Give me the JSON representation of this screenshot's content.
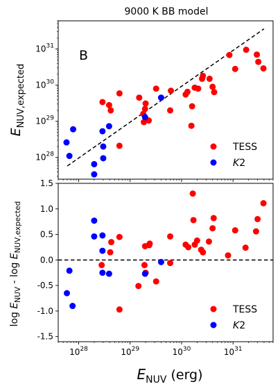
{
  "chart_data": [
    {
      "type": "scatter",
      "title": "9000 K BB model",
      "xlabel": "",
      "ylabel": "E_NUV,expected",
      "xscale": "log",
      "yscale": "log",
      "xlim": [
        4e+27,
        6e+31
      ],
      "ylim": [
        2.5e+27,
        6e+31
      ],
      "grid": false,
      "legend_position": "bottom-right",
      "panel_label": "B",
      "x_ticks": [
        "10^28",
        "10^29",
        "10^30",
        "10^31"
      ],
      "y_ticks": [
        "10^28",
        "10^29",
        "10^30",
        "10^31"
      ],
      "reference_line": {
        "style": "dashed",
        "color": "#000000",
        "x": [
          6e+27,
          4e+31
        ],
        "y": [
          5.8e+27,
          3.6e+31
        ]
      },
      "series": [
        {
          "name": "TESS",
          "color": "#ff0000",
          "points": [
            [
              6.2e+28,
              5.9e+29
            ],
            [
              2.9e+28,
              3.4e+29
            ],
            [
              3.9e+28,
              2.8e+29
            ],
            [
              4.2e+28,
              2e+29
            ],
            [
              6.2e+28,
              2.1e+28
            ],
            [
              1.5e+29,
              4.5e+29
            ],
            [
              1.8e+29,
              1.6e+29
            ],
            [
              1.95e+29,
              2.2e+29
            ],
            [
              2e+29,
              3.1e+29
            ],
            [
              1.85e+29,
              9.5e+28
            ],
            [
              2.3e+29,
              1.05e+29
            ],
            [
              3.2e+29,
              8e+29
            ],
            [
              6.2e+29,
              7e+29
            ],
            [
              6e+29,
              2e+29
            ],
            [
              1.2e+30,
              5.5e+29
            ],
            [
              1.3e+30,
              6.5e+29
            ],
            [
              1.6e+30,
              2.6e+29
            ],
            [
              1.55e+30,
              7.5e+28
            ],
            [
              1.8e+30,
              8.5e+29
            ],
            [
              2.1e+30,
              8e+29
            ],
            [
              2.5e+30,
              1.5e+30
            ],
            [
              2.6e+30,
              1.8e+30
            ],
            [
              3.5e+30,
              1.5e+30
            ],
            [
              4e+30,
              9e+29
            ],
            [
              4.3e+30,
              6.4e+29
            ],
            [
              8.5e+30,
              6.8e+30
            ],
            [
              1.1e+31,
              2.8e+30
            ],
            [
              1.8e+31,
              9.5e+30
            ],
            [
              2.9e+31,
              7e+30
            ],
            [
              3.1e+31,
              4.4e+30
            ],
            [
              3.9e+31,
              2.9e+30
            ]
          ]
        },
        {
          "name": "K2",
          "color": "#0000ff",
          "points": [
            [
              5.8e+27,
              2.6e+28
            ],
            [
              6.6e+27,
              1.1e+28
            ],
            [
              7.8e+27,
              6e+28
            ],
            [
              2e+28,
              6.5e+27
            ],
            [
              2e+28,
              3.4e+27
            ],
            [
              2.9e+28,
              5.3e+28
            ],
            [
              3e+28,
              2e+28
            ],
            [
              3e+28,
              9.5e+27
            ],
            [
              3.9e+28,
              7.3e+28
            ],
            [
              1.95e+29,
              1.3e+29
            ],
            [
              4e+29,
              4.5e+29
            ]
          ]
        }
      ]
    },
    {
      "type": "scatter",
      "title": "",
      "xlabel": "E_NUV (erg)",
      "ylabel": "log E_NUV - log E_NUV,expected",
      "xscale": "log",
      "xlim": [
        4e+27,
        6e+31
      ],
      "ylim": [
        -1.6,
        1.5
      ],
      "grid": false,
      "legend_position": "bottom-right",
      "x_ticks": [
        "10^28",
        "10^29",
        "10^30",
        "10^31"
      ],
      "y_ticks": [
        "-1.5",
        "-1.0",
        "-0.5",
        "0.0",
        "0.5",
        "1.0",
        "1.5"
      ],
      "y_tick_values": [
        -1.5,
        -1.0,
        -0.5,
        0.0,
        0.5,
        1.0,
        1.5
      ],
      "reference_line": {
        "style": "dashed",
        "color": "#000000",
        "y": 0
      },
      "series": [
        {
          "name": "TESS",
          "color": "#ff0000",
          "points": [
            [
              2.8e+28,
              -0.1
            ],
            [
              4.3e+28,
              0.35
            ],
            [
              4.1e+28,
              0.15
            ],
            [
              6.2e+28,
              0.45
            ],
            [
              6.2e+28,
              -0.97
            ],
            [
              1.45e+29,
              -0.51
            ],
            [
              1.9e+29,
              -0.1
            ],
            [
              1.95e+29,
              0.27
            ],
            [
              2e+29,
              -0.25
            ],
            [
              2.35e+29,
              0.29
            ],
            [
              2.4e+29,
              0.32
            ],
            [
              3.2e+29,
              -0.42
            ],
            [
              6e+29,
              0.46
            ],
            [
              6e+29,
              -0.06
            ],
            [
              1.2e+30,
              0.3
            ],
            [
              1.35e+30,
              0.25
            ],
            [
              1.65e+30,
              1.3
            ],
            [
              1.7e+30,
              0.78
            ],
            [
              1.8e+30,
              0.3
            ],
            [
              2e+30,
              0.38
            ],
            [
              2.4e+30,
              0.2
            ],
            [
              2.6e+30,
              0.15
            ],
            [
              3.4e+30,
              0.36
            ],
            [
              4e+30,
              0.62
            ],
            [
              4.2e+30,
              0.82
            ],
            [
              8e+30,
              0.09
            ],
            [
              1.1e+31,
              0.58
            ],
            [
              1.75e+31,
              0.24
            ],
            [
              2.8e+31,
              0.56
            ],
            [
              3e+31,
              0.8
            ],
            [
              3.9e+31,
              1.11
            ]
          ]
        },
        {
          "name": "K2",
          "color": "#0000ff",
          "points": [
            [
              5.9e+27,
              -0.65
            ],
            [
              6.6e+27,
              -0.21
            ],
            [
              7.6e+27,
              -0.9
            ],
            [
              2e+28,
              0.77
            ],
            [
              2e+28,
              0.46
            ],
            [
              2.9e+28,
              0.48
            ],
            [
              2.9e+28,
              0.18
            ],
            [
              2.9e+28,
              -0.25
            ],
            [
              3.9e+28,
              -0.27
            ],
            [
              1.95e+29,
              -0.27
            ],
            [
              4e+29,
              -0.04
            ]
          ]
        }
      ]
    }
  ]
}
